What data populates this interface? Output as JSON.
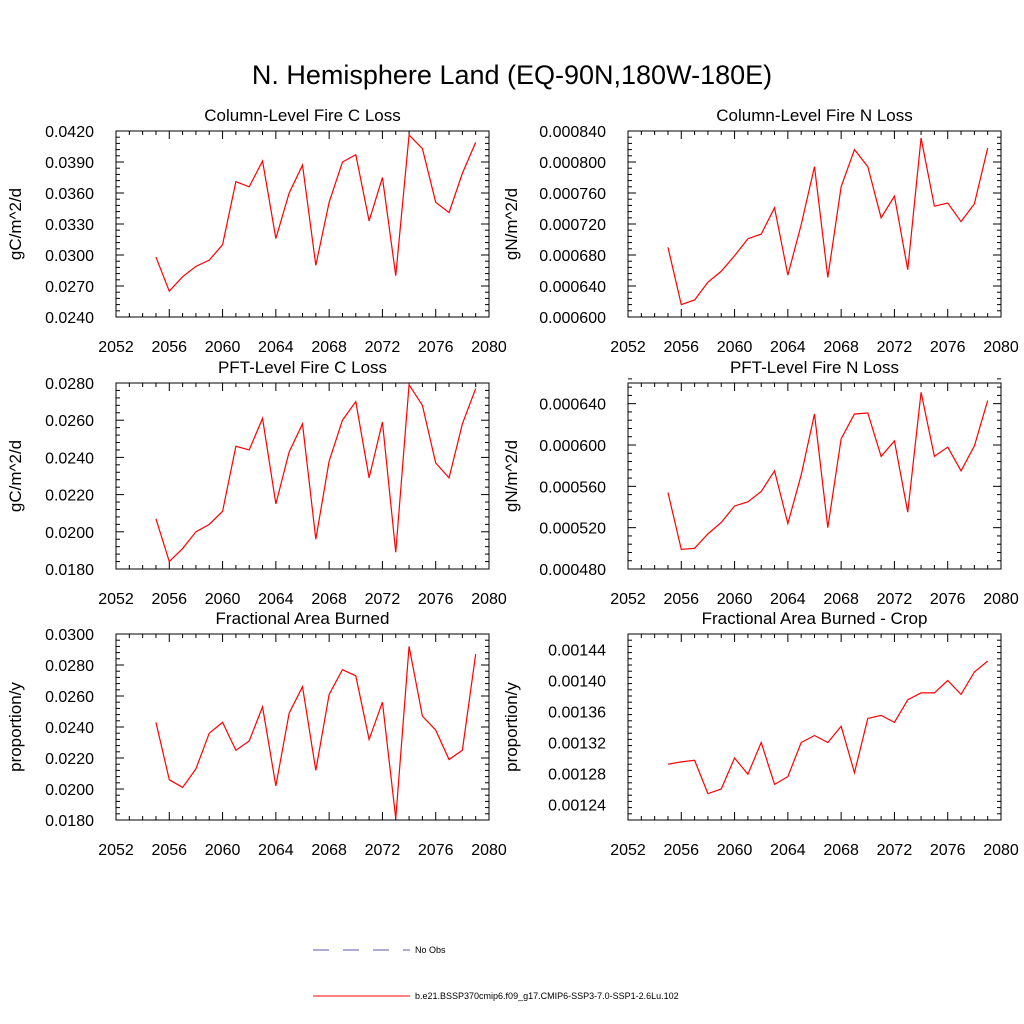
{
  "figure": {
    "title": "N. Hemisphere Land (EQ-90N,180W-180E)"
  },
  "legend": {
    "entries": [
      {
        "label": "No Obs",
        "color": "#5a5aa8",
        "style": "dashed"
      },
      {
        "label": "b.e21.BSSP370cmip6.f09_g17.CMIP6-SSP3-7.0-SSP1-2.6Lu.102",
        "color": "#ff0000",
        "style": "solid"
      }
    ]
  },
  "chart_data": [
    {
      "type": "line",
      "title": "Column-Level Fire C Loss",
      "ylabel": "gC/m^2/d",
      "xlim": [
        2052,
        2080
      ],
      "xticks": [
        "2052",
        "2056",
        "2060",
        "2064",
        "2068",
        "2072",
        "2076",
        "2080"
      ],
      "ylim": [
        0.024,
        0.042
      ],
      "yticks": [
        "0.0240",
        "0.0270",
        "0.0300",
        "0.0330",
        "0.0360",
        "0.0390",
        "0.0420"
      ],
      "x": [
        2055,
        2056,
        2057,
        2058,
        2059,
        2060,
        2061,
        2062,
        2063,
        2064,
        2065,
        2066,
        2067,
        2068,
        2069,
        2070,
        2071,
        2072,
        2073,
        2074,
        2075,
        2076,
        2077,
        2078,
        2079
      ],
      "series": [
        {
          "color": "#ff0000",
          "values": [
            0.0298,
            0.0265,
            0.0279,
            0.0289,
            0.0295,
            0.031,
            0.0371,
            0.0366,
            0.0391,
            0.0316,
            0.036,
            0.0387,
            0.029,
            0.0351,
            0.039,
            0.0397,
            0.0333,
            0.0375,
            0.028,
            0.0416,
            0.0403,
            0.0351,
            0.0341,
            0.0379,
            0.0409
          ]
        }
      ]
    },
    {
      "type": "line",
      "title": "Column-Level Fire N Loss",
      "ylabel": "gN/m^2/d",
      "xlim": [
        2052,
        2080
      ],
      "xticks": [
        "2052",
        "2056",
        "2060",
        "2064",
        "2068",
        "2072",
        "2076",
        "2080"
      ],
      "ylim": [
        0.0006,
        0.00084
      ],
      "yticks": [
        "0.000600",
        "0.000640",
        "0.000680",
        "0.000720",
        "0.000760",
        "0.000800",
        "0.000840"
      ],
      "x": [
        2055,
        2056,
        2057,
        2058,
        2059,
        2060,
        2061,
        2062,
        2063,
        2064,
        2065,
        2066,
        2067,
        2068,
        2069,
        2070,
        2071,
        2072,
        2073,
        2074,
        2075,
        2076,
        2077,
        2078,
        2079
      ],
      "series": [
        {
          "color": "#ff0000",
          "values": [
            0.00069,
            0.000616,
            0.000622,
            0.000645,
            0.000659,
            0.000679,
            0.000701,
            0.000707,
            0.000741,
            0.000654,
            0.000719,
            0.000794,
            0.000651,
            0.000768,
            0.000816,
            0.000794,
            0.000728,
            0.000756,
            0.000661,
            0.000831,
            0.000743,
            0.000747,
            0.000723,
            0.000746,
            0.000818
          ]
        }
      ]
    },
    {
      "type": "line",
      "title": "PFT-Level Fire C Loss",
      "ylabel": "gC/m^2/d",
      "xlim": [
        2052,
        2080
      ],
      "xticks": [
        "2052",
        "2056",
        "2060",
        "2064",
        "2068",
        "2072",
        "2076",
        "2080"
      ],
      "ylim": [
        0.018,
        0.028
      ],
      "yticks": [
        "0.0180",
        "0.0200",
        "0.0220",
        "0.0240",
        "0.0260",
        "0.0280"
      ],
      "x": [
        2055,
        2056,
        2057,
        2058,
        2059,
        2060,
        2061,
        2062,
        2063,
        2064,
        2065,
        2066,
        2067,
        2068,
        2069,
        2070,
        2071,
        2072,
        2073,
        2074,
        2075,
        2076,
        2077,
        2078,
        2079
      ],
      "series": [
        {
          "color": "#ff0000",
          "values": [
            0.0207,
            0.0184,
            0.0191,
            0.02,
            0.0204,
            0.0211,
            0.0246,
            0.0244,
            0.0261,
            0.0215,
            0.0243,
            0.0258,
            0.0196,
            0.0238,
            0.026,
            0.027,
            0.0229,
            0.0259,
            0.0189,
            0.0279,
            0.0268,
            0.0237,
            0.0229,
            0.0258,
            0.0277
          ]
        }
      ]
    },
    {
      "type": "line",
      "title": "PFT-Level Fire N Loss",
      "ylabel": "gN/m^2/d",
      "xlim": [
        2052,
        2080
      ],
      "xticks": [
        "2052",
        "2056",
        "2060",
        "2064",
        "2068",
        "2072",
        "2076",
        "2080"
      ],
      "ylim": [
        0.00048,
        0.00066
      ],
      "yticks": [
        "0.000480",
        "0.000520",
        "0.000560",
        "0.000600",
        "0.000640"
      ],
      "x": [
        2055,
        2056,
        2057,
        2058,
        2059,
        2060,
        2061,
        2062,
        2063,
        2064,
        2065,
        2066,
        2067,
        2068,
        2069,
        2070,
        2071,
        2072,
        2073,
        2074,
        2075,
        2076,
        2077,
        2078,
        2079
      ],
      "series": [
        {
          "color": "#ff0000",
          "values": [
            0.000554,
            0.000499,
            0.0005,
            0.000514,
            0.000525,
            0.000541,
            0.000545,
            0.000555,
            0.000575,
            0.000524,
            0.000571,
            0.00063,
            0.00052,
            0.000606,
            0.00063,
            0.000631,
            0.000589,
            0.000604,
            0.000535,
            0.000651,
            0.000589,
            0.000598,
            0.000575,
            0.000599,
            0.000643
          ]
        }
      ]
    },
    {
      "type": "line",
      "title": "Fractional Area Burned",
      "ylabel": "proportion/y",
      "xlim": [
        2052,
        2080
      ],
      "xticks": [
        "2052",
        "2056",
        "2060",
        "2064",
        "2068",
        "2072",
        "2076",
        "2080"
      ],
      "ylim": [
        0.018,
        0.03
      ],
      "yticks": [
        "0.0180",
        "0.0200",
        "0.0220",
        "0.0240",
        "0.0260",
        "0.0280",
        "0.0300"
      ],
      "x": [
        2055,
        2056,
        2057,
        2058,
        2059,
        2060,
        2061,
        2062,
        2063,
        2064,
        2065,
        2066,
        2067,
        2068,
        2069,
        2070,
        2071,
        2072,
        2073,
        2074,
        2075,
        2076,
        2077,
        2078,
        2079
      ],
      "series": [
        {
          "color": "#ff0000",
          "values": [
            0.0243,
            0.0206,
            0.0201,
            0.0213,
            0.0236,
            0.0243,
            0.0225,
            0.0231,
            0.0253,
            0.0202,
            0.0249,
            0.0266,
            0.0212,
            0.0261,
            0.0277,
            0.0273,
            0.0232,
            0.0256,
            0.0181,
            0.0292,
            0.0247,
            0.0238,
            0.0219,
            0.0225,
            0.0287
          ]
        }
      ]
    },
    {
      "type": "line",
      "title": "Fractional Area Burned - Crop",
      "ylabel": "proportion/y",
      "xlim": [
        2052,
        2080
      ],
      "xticks": [
        "2052",
        "2056",
        "2060",
        "2064",
        "2068",
        "2072",
        "2076",
        "2080"
      ],
      "ylim": [
        0.00122,
        0.00146
      ],
      "yticks": [
        "0.00124",
        "0.00128",
        "0.00132",
        "0.00136",
        "0.00140",
        "0.00144"
      ],
      "x": [
        2055,
        2056,
        2057,
        2058,
        2059,
        2060,
        2061,
        2062,
        2063,
        2064,
        2065,
        2066,
        2067,
        2068,
        2069,
        2070,
        2071,
        2072,
        2073,
        2074,
        2075,
        2076,
        2077,
        2078,
        2079
      ],
      "series": [
        {
          "color": "#ff0000",
          "values": [
            0.001292,
            0.001295,
            0.001297,
            0.001254,
            0.00126,
            0.0013,
            0.001279,
            0.00132,
            0.001266,
            0.001276,
            0.00132,
            0.001329,
            0.00132,
            0.001341,
            0.001281,
            0.001351,
            0.001355,
            0.001346,
            0.001375,
            0.001384,
            0.001384,
            0.0014,
            0.001382,
            0.001411,
            0.001425
          ]
        }
      ]
    }
  ]
}
